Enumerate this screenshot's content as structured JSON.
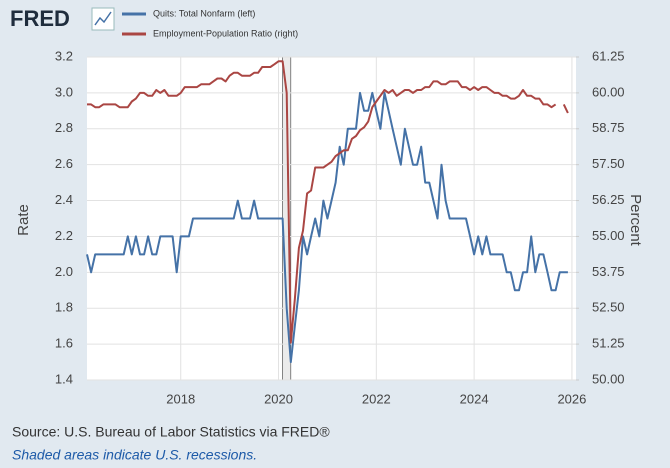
{
  "header": {
    "logo": "FRED"
  },
  "footer": {
    "source": "Source: U.S. Bureau of Labor Statistics via FRED®",
    "note": "Shaded areas indicate U.S. recessions."
  },
  "chart_data": {
    "type": "line",
    "ylabel": "Rate",
    "y2label": "Percent",
    "x": [
      "2016-02",
      "2016-03",
      "2016-04",
      "2016-05",
      "2016-06",
      "2016-07",
      "2016-08",
      "2016-09",
      "2016-10",
      "2016-11",
      "2016-12",
      "2017-01",
      "2017-02",
      "2017-03",
      "2017-04",
      "2017-05",
      "2017-06",
      "2017-07",
      "2017-08",
      "2017-09",
      "2017-10",
      "2017-11",
      "2017-12",
      "2018-01",
      "2018-02",
      "2018-03",
      "2018-04",
      "2018-05",
      "2018-06",
      "2018-07",
      "2018-08",
      "2018-09",
      "2018-10",
      "2018-11",
      "2018-12",
      "2019-01",
      "2019-02",
      "2019-03",
      "2019-04",
      "2019-05",
      "2019-06",
      "2019-07",
      "2019-08",
      "2019-09",
      "2019-10",
      "2019-11",
      "2019-12",
      "2020-01",
      "2020-02",
      "2020-03",
      "2020-04",
      "2020-05",
      "2020-06",
      "2020-07",
      "2020-08",
      "2020-09",
      "2020-10",
      "2020-11",
      "2020-12",
      "2021-01",
      "2021-02",
      "2021-03",
      "2021-04",
      "2021-05",
      "2021-06",
      "2021-07",
      "2021-08",
      "2021-09",
      "2021-10",
      "2021-11",
      "2021-12",
      "2022-01",
      "2022-02",
      "2022-03",
      "2022-04",
      "2022-05",
      "2022-06",
      "2022-07",
      "2022-08",
      "2022-09",
      "2022-10",
      "2022-11",
      "2022-12",
      "2023-01",
      "2023-02",
      "2023-03",
      "2023-04",
      "2023-05",
      "2023-06",
      "2023-07",
      "2023-08",
      "2023-09",
      "2023-10",
      "2023-11",
      "2023-12",
      "2024-01",
      "2024-02",
      "2024-03",
      "2024-04",
      "2024-05",
      "2024-06",
      "2024-07",
      "2024-08",
      "2024-09",
      "2024-10",
      "2024-11",
      "2024-12",
      "2025-01",
      "2025-02",
      "2025-03",
      "2025-04",
      "2025-05",
      "2025-06",
      "2025-07",
      "2025-08",
      "2025-09",
      "2025-10",
      "2025-11",
      "2025-12"
    ],
    "series": [
      {
        "name": "Quits: Total Nonfarm (left)",
        "color": "#4572a7",
        "axis": "y",
        "values": [
          2.1,
          2.0,
          2.1,
          2.1,
          2.1,
          2.1,
          2.1,
          2.1,
          2.1,
          2.1,
          2.2,
          2.1,
          2.2,
          2.1,
          2.1,
          2.2,
          2.1,
          2.1,
          2.2,
          2.2,
          2.2,
          2.2,
          2.0,
          2.2,
          2.2,
          2.2,
          2.3,
          2.3,
          2.3,
          2.3,
          2.3,
          2.3,
          2.3,
          2.3,
          2.3,
          2.3,
          2.3,
          2.4,
          2.3,
          2.3,
          2.3,
          2.4,
          2.3,
          2.3,
          2.3,
          2.3,
          2.3,
          2.3,
          2.3,
          1.8,
          1.5,
          1.7,
          1.9,
          2.2,
          2.1,
          2.2,
          2.3,
          2.2,
          2.4,
          2.3,
          2.4,
          2.5,
          2.7,
          2.6,
          2.8,
          2.8,
          2.8,
          3.0,
          2.9,
          2.9,
          3.0,
          2.9,
          2.8,
          3.0,
          2.9,
          2.8,
          2.7,
          2.6,
          2.8,
          2.7,
          2.6,
          2.6,
          2.7,
          2.5,
          2.5,
          2.4,
          2.3,
          2.6,
          2.4,
          2.3,
          2.3,
          2.3,
          2.3,
          2.3,
          2.2,
          2.1,
          2.2,
          2.1,
          2.2,
          2.1,
          2.1,
          2.1,
          2.1,
          2.0,
          2.0,
          1.9,
          1.9,
          2.0,
          2.0,
          2.2,
          2.0,
          2.1,
          2.1,
          2.0,
          1.9,
          1.9,
          2.0,
          2.0,
          2.0
        ]
      },
      {
        "name": "Employment-Population Ratio (right)",
        "color": "#aa4643",
        "axis": "y2",
        "values": [
          59.6,
          59.6,
          59.5,
          59.5,
          59.6,
          59.6,
          59.6,
          59.6,
          59.5,
          59.5,
          59.5,
          59.7,
          59.8,
          60.0,
          60.0,
          59.9,
          59.9,
          60.1,
          60.0,
          60.1,
          59.9,
          59.9,
          59.9,
          60.0,
          60.2,
          60.2,
          60.2,
          60.2,
          60.3,
          60.3,
          60.3,
          60.4,
          60.5,
          60.5,
          60.4,
          60.6,
          60.7,
          60.7,
          60.6,
          60.6,
          60.6,
          60.7,
          60.7,
          60.9,
          60.9,
          60.9,
          61.0,
          61.1,
          61.1,
          60.0,
          51.3,
          52.8,
          54.6,
          55.2,
          56.5,
          56.6,
          57.4,
          57.4,
          57.4,
          57.5,
          57.6,
          57.8,
          57.9,
          58.0,
          58.0,
          58.4,
          58.5,
          58.7,
          58.8,
          59.0,
          59.5,
          59.7,
          59.9,
          60.1,
          60.0,
          60.1,
          59.9,
          60.0,
          60.1,
          60.1,
          60.0,
          60.1,
          60.1,
          60.2,
          60.2,
          60.4,
          60.4,
          60.3,
          60.3,
          60.4,
          60.4,
          60.4,
          60.2,
          60.2,
          60.1,
          60.2,
          60.1,
          60.2,
          60.2,
          60.1,
          60.0,
          60.0,
          59.9,
          59.9,
          59.8,
          59.8,
          59.9,
          60.1,
          59.9,
          59.9,
          59.8,
          59.8,
          59.6,
          59.6,
          59.5,
          59.6,
          null,
          59.6,
          59.3
        ]
      }
    ],
    "xlim": [
      "2016-02",
      "2026-02"
    ],
    "xticks": [
      2018,
      2020,
      2022,
      2024,
      2026
    ],
    "ylim": [
      1.4,
      3.2
    ],
    "yticks": [
      1.4,
      1.6,
      1.8,
      {
        "value": 2,
        "label": "2.0"
      },
      2.2,
      2.4,
      2.6,
      2.8,
      {
        "value": 3,
        "label": "3.0"
      },
      3.2
    ],
    "y2lim": [
      50,
      61.25
    ],
    "y2ticks": [
      {
        "value": 50,
        "label": "50.00"
      },
      {
        "value": 51.25,
        "label": "51.25"
      },
      {
        "value": 52.5,
        "label": "52.50"
      },
      {
        "value": 53.75,
        "label": "53.75"
      },
      {
        "value": 55,
        "label": "55.00"
      },
      {
        "value": 56.25,
        "label": "56.25"
      },
      {
        "value": 57.5,
        "label": "57.50"
      },
      {
        "value": 58.75,
        "label": "58.75"
      },
      {
        "value": 60,
        "label": "60.00"
      },
      {
        "value": 61.25,
        "label": "61.25"
      }
    ],
    "recessions": [
      [
        "2020-02",
        "2020-04"
      ]
    ],
    "grid": true
  }
}
